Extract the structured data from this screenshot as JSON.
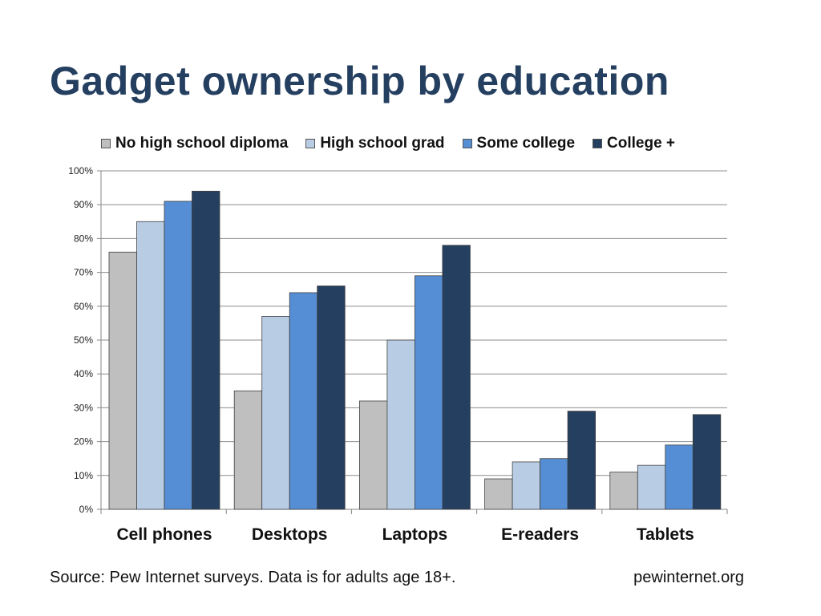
{
  "slide": {
    "title": "Gadget ownership by education",
    "source": "Source: Pew Internet surveys. Data is for adults age 18+.",
    "website": "pewinternet.org"
  },
  "chart_data": {
    "type": "bar",
    "title": "",
    "xlabel": "",
    "ylabel": "",
    "ylim": [
      0,
      100
    ],
    "y_ticks": [
      "0%",
      "10%",
      "20%",
      "30%",
      "40%",
      "50%",
      "60%",
      "70%",
      "80%",
      "90%",
      "100%"
    ],
    "grid": true,
    "legend_position": "top",
    "categories": [
      "Cell phones",
      "Desktops",
      "Laptops",
      "E-readers",
      "Tablets"
    ],
    "series": [
      {
        "name": "No high school diploma",
        "color": "#bfbfbf",
        "values": [
          76,
          35,
          32,
          9,
          11
        ]
      },
      {
        "name": "High school grad",
        "color": "#b8cce4",
        "values": [
          85,
          57,
          50,
          14,
          13
        ]
      },
      {
        "name": "Some college",
        "color": "#558ed5",
        "values": [
          91,
          64,
          69,
          15,
          19
        ]
      },
      {
        "name": "College +",
        "color": "#243f60",
        "values": [
          94,
          66,
          78,
          29,
          28
        ]
      }
    ]
  }
}
